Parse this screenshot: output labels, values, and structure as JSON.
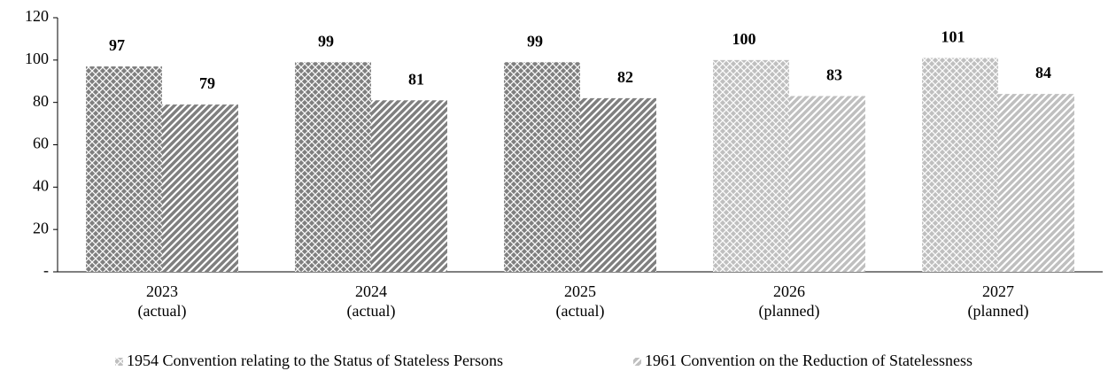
{
  "chart_data": {
    "type": "bar",
    "categories": [
      [
        "2023",
        "(actual)"
      ],
      [
        "2024",
        "(actual)"
      ],
      [
        "2025",
        "(actual)"
      ],
      [
        "2026",
        "(planned)"
      ],
      [
        "2027",
        "(planned)"
      ]
    ],
    "series": [
      {
        "name": "1954 Convention relating to the Status of Stateless Persons",
        "pattern": "crosshatch",
        "colors": [
          "#7f7f7f",
          "#7f7f7f",
          "#7f7f7f",
          "#bfbfbf",
          "#bfbfbf"
        ],
        "values": [
          97,
          99,
          99,
          100,
          101
        ]
      },
      {
        "name": "1961 Convention on the Reduction of Statelessness",
        "pattern": "diagonal",
        "colors": [
          "#7f7f7f",
          "#7f7f7f",
          "#7f7f7f",
          "#bfbfbf",
          "#bfbfbf"
        ],
        "values": [
          79,
          81,
          82,
          83,
          84
        ]
      }
    ],
    "ylim": [
      0,
      120
    ],
    "yticks": [
      {
        "value": 0,
        "label": "-"
      },
      20,
      40,
      60,
      80,
      100,
      120
    ],
    "grid": false,
    "legend": "bottom"
  }
}
